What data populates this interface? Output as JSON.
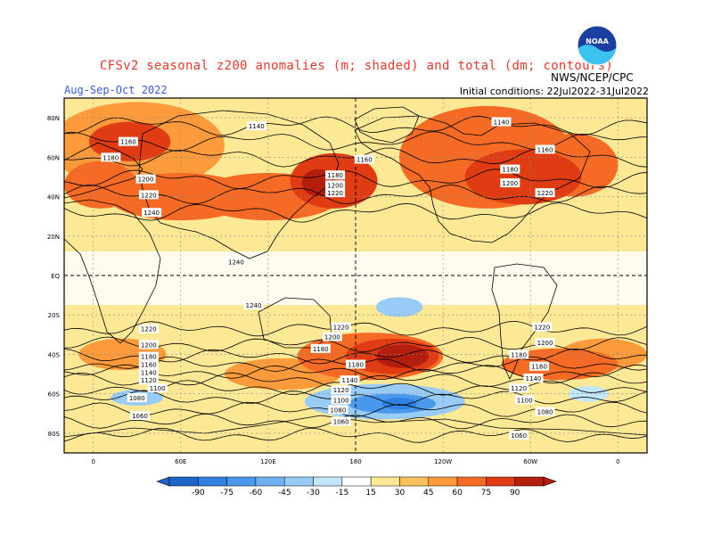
{
  "header": {
    "title": "CFSv2 seasonal z200 anomalies (m; shaded) and total (dm; contours)",
    "period": "Aug-Sep-Oct 2022",
    "initial_conditions": "Initial conditions: 22Jul2022-31Jul2022",
    "agency": "NWS/NCEP/CPC",
    "logo_text": "NOAA"
  },
  "map": {
    "lat_labels": [
      "80N",
      "60N",
      "40N",
      "20N",
      "EQ",
      "20S",
      "40S",
      "60S",
      "80S"
    ],
    "lon_labels": [
      "0",
      "60E",
      "120E",
      "180",
      "120W",
      "60W",
      "0"
    ],
    "contour_labels": [
      {
        "text": "1140",
        "lon": 112,
        "lat": 76
      },
      {
        "text": "1160",
        "lon": 24,
        "lat": 68
      },
      {
        "text": "1180",
        "lon": 12,
        "lat": 60
      },
      {
        "text": "1200",
        "lon": 36,
        "lat": 49
      },
      {
        "text": "1220",
        "lon": 38,
        "lat": 41
      },
      {
        "text": "1240",
        "lon": 40,
        "lat": 32
      },
      {
        "text": "1180",
        "lon": 166,
        "lat": 51
      },
      {
        "text": "1200",
        "lon": 166,
        "lat": 46
      },
      {
        "text": "1220",
        "lon": 166,
        "lat": 42
      },
      {
        "text": "1160",
        "lon": 186,
        "lat": 59
      },
      {
        "text": "1140",
        "lon": 280,
        "lat": 78
      },
      {
        "text": "1180",
        "lon": 286,
        "lat": 54
      },
      {
        "text": "1200",
        "lon": 286,
        "lat": 47
      },
      {
        "text": "1160",
        "lon": 310,
        "lat": 64
      },
      {
        "text": "1220",
        "lon": 310,
        "lat": 42
      },
      {
        "text": "1240",
        "lon": 98,
        "lat": 7
      },
      {
        "text": "1240",
        "lon": 110,
        "lat": -15
      },
      {
        "text": "1220",
        "lon": 38,
        "lat": -27
      },
      {
        "text": "1200",
        "lon": 38,
        "lat": -35
      },
      {
        "text": "1180",
        "lon": 38,
        "lat": -41
      },
      {
        "text": "1160",
        "lon": 38,
        "lat": -45
      },
      {
        "text": "1140",
        "lon": 38,
        "lat": -49
      },
      {
        "text": "1120",
        "lon": 38,
        "lat": -53
      },
      {
        "text": "1100",
        "lon": 44,
        "lat": -57
      },
      {
        "text": "1080",
        "lon": 30,
        "lat": -62
      },
      {
        "text": "1060",
        "lon": 32,
        "lat": -71
      },
      {
        "text": "1220",
        "lon": 170,
        "lat": -26
      },
      {
        "text": "1200",
        "lon": 164,
        "lat": -31
      },
      {
        "text": "1180",
        "lon": 156,
        "lat": -37
      },
      {
        "text": "1180",
        "lon": 180,
        "lat": -45
      },
      {
        "text": "1140",
        "lon": 176,
        "lat": -53
      },
      {
        "text": "1120",
        "lon": 170,
        "lat": -58
      },
      {
        "text": "1100",
        "lon": 170,
        "lat": -63
      },
      {
        "text": "1080",
        "lon": 168,
        "lat": -68
      },
      {
        "text": "1060",
        "lon": 170,
        "lat": -74
      },
      {
        "text": "1220",
        "lon": 308,
        "lat": -26
      },
      {
        "text": "1200",
        "lon": 310,
        "lat": -34
      },
      {
        "text": "1180",
        "lon": 292,
        "lat": -40
      },
      {
        "text": "1160",
        "lon": 306,
        "lat": -46
      },
      {
        "text": "1140",
        "lon": 302,
        "lat": -52
      },
      {
        "text": "1120",
        "lon": 292,
        "lat": -57
      },
      {
        "text": "1100",
        "lon": 296,
        "lat": -63
      },
      {
        "text": "1080",
        "lon": 310,
        "lat": -69
      },
      {
        "text": "1060",
        "lon": 292,
        "lat": -81
      }
    ],
    "anomaly_blobs": [
      {
        "lon": 30,
        "lat": 66,
        "rx": 60,
        "ry": 22,
        "level": 45
      },
      {
        "lon": 25,
        "lat": 68,
        "rx": 28,
        "ry": 10,
        "level": 75
      },
      {
        "lon": 60,
        "lat": 40,
        "rx": 50,
        "ry": 12,
        "level": 60
      },
      {
        "lon": 120,
        "lat": 40,
        "rx": 50,
        "ry": 12,
        "level": 60
      },
      {
        "lon": 165,
        "lat": 48,
        "rx": 30,
        "ry": 14,
        "level": 75
      },
      {
        "lon": 155,
        "lat": 47,
        "rx": 12,
        "ry": 7,
        "level": 90
      },
      {
        "lon": 270,
        "lat": 60,
        "rx": 60,
        "ry": 26,
        "level": 60
      },
      {
        "lon": 295,
        "lat": 50,
        "rx": 40,
        "ry": 14,
        "level": 75
      },
      {
        "lon": 330,
        "lat": 56,
        "rx": 30,
        "ry": 16,
        "level": 60
      },
      {
        "lon": 5,
        "lat": 46,
        "rx": 25,
        "ry": 12,
        "level": 60
      },
      {
        "lon": 190,
        "lat": -41,
        "rx": 50,
        "ry": 12,
        "level": 60
      },
      {
        "lon": 205,
        "lat": -41,
        "rx": 32,
        "ry": 9,
        "level": 75
      },
      {
        "lon": 212,
        "lat": -41,
        "rx": 18,
        "ry": 6,
        "level": 90
      },
      {
        "lon": 130,
        "lat": -50,
        "rx": 40,
        "ry": 8,
        "level": 45
      },
      {
        "lon": 320,
        "lat": -45,
        "rx": 40,
        "ry": 8,
        "level": 60
      },
      {
        "lon": 20,
        "lat": -40,
        "rx": 30,
        "ry": 8,
        "level": 45
      },
      {
        "lon": 350,
        "lat": -40,
        "rx": 30,
        "ry": 8,
        "level": 45
      }
    ],
    "negative_blobs": [
      {
        "lon": 200,
        "lat": -64,
        "rx": 55,
        "ry": 9,
        "level": -30
      },
      {
        "lon": 205,
        "lat": -65,
        "rx": 30,
        "ry": 5,
        "level": -60
      },
      {
        "lon": 210,
        "lat": -65,
        "rx": 12,
        "ry": 3,
        "level": -75
      },
      {
        "lon": 210,
        "lat": -16,
        "rx": 16,
        "ry": 5,
        "level": -30
      },
      {
        "lon": 30,
        "lat": -62,
        "rx": 18,
        "ry": 4,
        "level": -30
      },
      {
        "lon": 340,
        "lat": -60,
        "rx": 14,
        "ry": 4,
        "level": -15
      }
    ]
  },
  "colorbar": {
    "labels": [
      "-90",
      "-75",
      "-60",
      "-45",
      "-30",
      "-15",
      "15",
      "30",
      "45",
      "60",
      "75",
      "90"
    ],
    "colors": [
      "#1e64c8",
      "#2f80e0",
      "#4a98ec",
      "#6eb0f2",
      "#98ccf6",
      "#c2e6fa",
      "#ffffff",
      "#fde896",
      "#fdc25c",
      "#fc9a3c",
      "#f56a24",
      "#e03c14",
      "#b41e0c"
    ]
  }
}
